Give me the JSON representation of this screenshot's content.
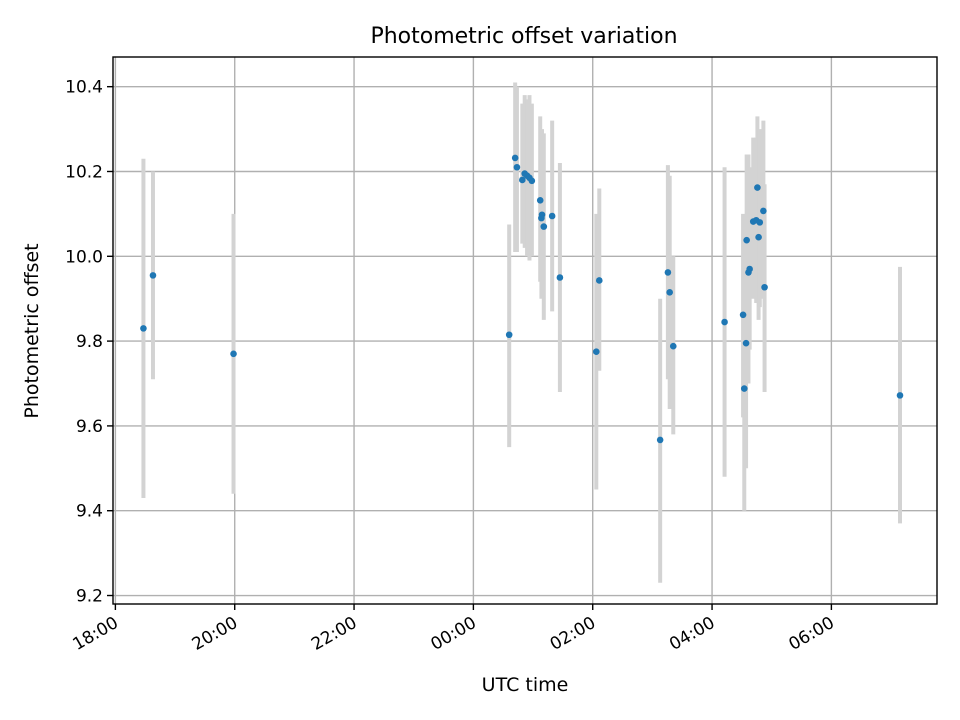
{
  "chart_data": {
    "type": "scatter",
    "title": "Photometric offset variation",
    "xlabel": "UTC time",
    "ylabel": "Photometric offset",
    "x_unit": "hours (UTC, continuing past midnight)",
    "xlim": [
      17.96,
      31.77
    ],
    "ylim": [
      9.18,
      10.47
    ],
    "x_ticks": [
      {
        "value": 18,
        "label": "18:00"
      },
      {
        "value": 20,
        "label": "20:00"
      },
      {
        "value": 22,
        "label": "22:00"
      },
      {
        "value": 24,
        "label": "00:00"
      },
      {
        "value": 26,
        "label": "02:00"
      },
      {
        "value": 28,
        "label": "04:00"
      },
      {
        "value": 30,
        "label": "06:00"
      }
    ],
    "y_ticks": [
      {
        "value": 9.2,
        "label": "9.2"
      },
      {
        "value": 9.4,
        "label": "9.4"
      },
      {
        "value": 9.6,
        "label": "9.6"
      },
      {
        "value": 9.8,
        "label": "9.8"
      },
      {
        "value": 10.0,
        "label": "10.0"
      },
      {
        "value": 10.2,
        "label": "10.2"
      },
      {
        "value": 10.4,
        "label": "10.4"
      }
    ],
    "grid": true,
    "colors": {
      "point": "#1f77b4",
      "error_bar": "#d3d3d3"
    },
    "points": [
      {
        "x": 18.47,
        "y": 9.83,
        "lo": 9.43,
        "hi": 10.23
      },
      {
        "x": 18.63,
        "y": 9.955,
        "lo": 9.71,
        "hi": 10.2
      },
      {
        "x": 19.98,
        "y": 9.77,
        "lo": 9.44,
        "hi": 10.1
      },
      {
        "x": 24.6,
        "y": 9.815,
        "lo": 9.55,
        "hi": 10.075
      },
      {
        "x": 24.7,
        "y": 10.232,
        "lo": 10.01,
        "hi": 10.41
      },
      {
        "x": 24.73,
        "y": 10.21,
        "lo": 10.01,
        "hi": 10.4
      },
      {
        "x": 24.82,
        "y": 10.18,
        "lo": 10.03,
        "hi": 10.36
      },
      {
        "x": 24.86,
        "y": 10.195,
        "lo": 10.02,
        "hi": 10.38
      },
      {
        "x": 24.9,
        "y": 10.19,
        "lo": 10.0,
        "hi": 10.37
      },
      {
        "x": 24.94,
        "y": 10.185,
        "lo": 9.99,
        "hi": 10.38
      },
      {
        "x": 24.98,
        "y": 10.178,
        "lo": 10.0,
        "hi": 10.36
      },
      {
        "x": 25.12,
        "y": 10.132,
        "lo": 9.94,
        "hi": 10.33
      },
      {
        "x": 25.15,
        "y": 10.098,
        "lo": 9.92,
        "hi": 10.3
      },
      {
        "x": 25.14,
        "y": 10.09,
        "lo": 9.9,
        "hi": 10.28
      },
      {
        "x": 25.18,
        "y": 10.07,
        "lo": 9.85,
        "hi": 10.29
      },
      {
        "x": 25.32,
        "y": 10.095,
        "lo": 9.87,
        "hi": 10.32
      },
      {
        "x": 25.45,
        "y": 9.95,
        "lo": 9.68,
        "hi": 10.22
      },
      {
        "x": 26.06,
        "y": 9.775,
        "lo": 9.45,
        "hi": 10.1
      },
      {
        "x": 26.11,
        "y": 9.943,
        "lo": 9.73,
        "hi": 10.16
      },
      {
        "x": 27.13,
        "y": 9.567,
        "lo": 9.23,
        "hi": 9.9
      },
      {
        "x": 27.26,
        "y": 9.962,
        "lo": 9.71,
        "hi": 10.215
      },
      {
        "x": 27.29,
        "y": 9.915,
        "lo": 9.64,
        "hi": 10.19
      },
      {
        "x": 27.35,
        "y": 9.788,
        "lo": 9.58,
        "hi": 10.0
      },
      {
        "x": 28.21,
        "y": 9.845,
        "lo": 9.48,
        "hi": 10.21
      },
      {
        "x": 28.52,
        "y": 9.862,
        "lo": 9.62,
        "hi": 10.1
      },
      {
        "x": 28.54,
        "y": 9.688,
        "lo": 9.4,
        "hi": 10.0
      },
      {
        "x": 28.57,
        "y": 9.795,
        "lo": 9.5,
        "hi": 10.09
      },
      {
        "x": 28.58,
        "y": 10.038,
        "lo": 9.85,
        "hi": 10.24
      },
      {
        "x": 28.61,
        "y": 9.962,
        "lo": 9.7,
        "hi": 10.24
      },
      {
        "x": 28.63,
        "y": 9.97,
        "lo": 9.78,
        "hi": 10.21
      },
      {
        "x": 28.69,
        "y": 10.082,
        "lo": 9.9,
        "hi": 10.28
      },
      {
        "x": 28.74,
        "y": 10.085,
        "lo": 9.89,
        "hi": 10.28
      },
      {
        "x": 28.76,
        "y": 10.162,
        "lo": 9.98,
        "hi": 10.33
      },
      {
        "x": 28.78,
        "y": 10.045,
        "lo": 9.85,
        "hi": 10.28
      },
      {
        "x": 28.8,
        "y": 10.08,
        "lo": 9.88,
        "hi": 10.3
      },
      {
        "x": 28.86,
        "y": 10.107,
        "lo": 9.9,
        "hi": 10.32
      },
      {
        "x": 28.88,
        "y": 9.927,
        "lo": 9.68,
        "hi": 10.17
      },
      {
        "x": 31.15,
        "y": 9.672,
        "lo": 9.37,
        "hi": 9.975
      }
    ]
  }
}
